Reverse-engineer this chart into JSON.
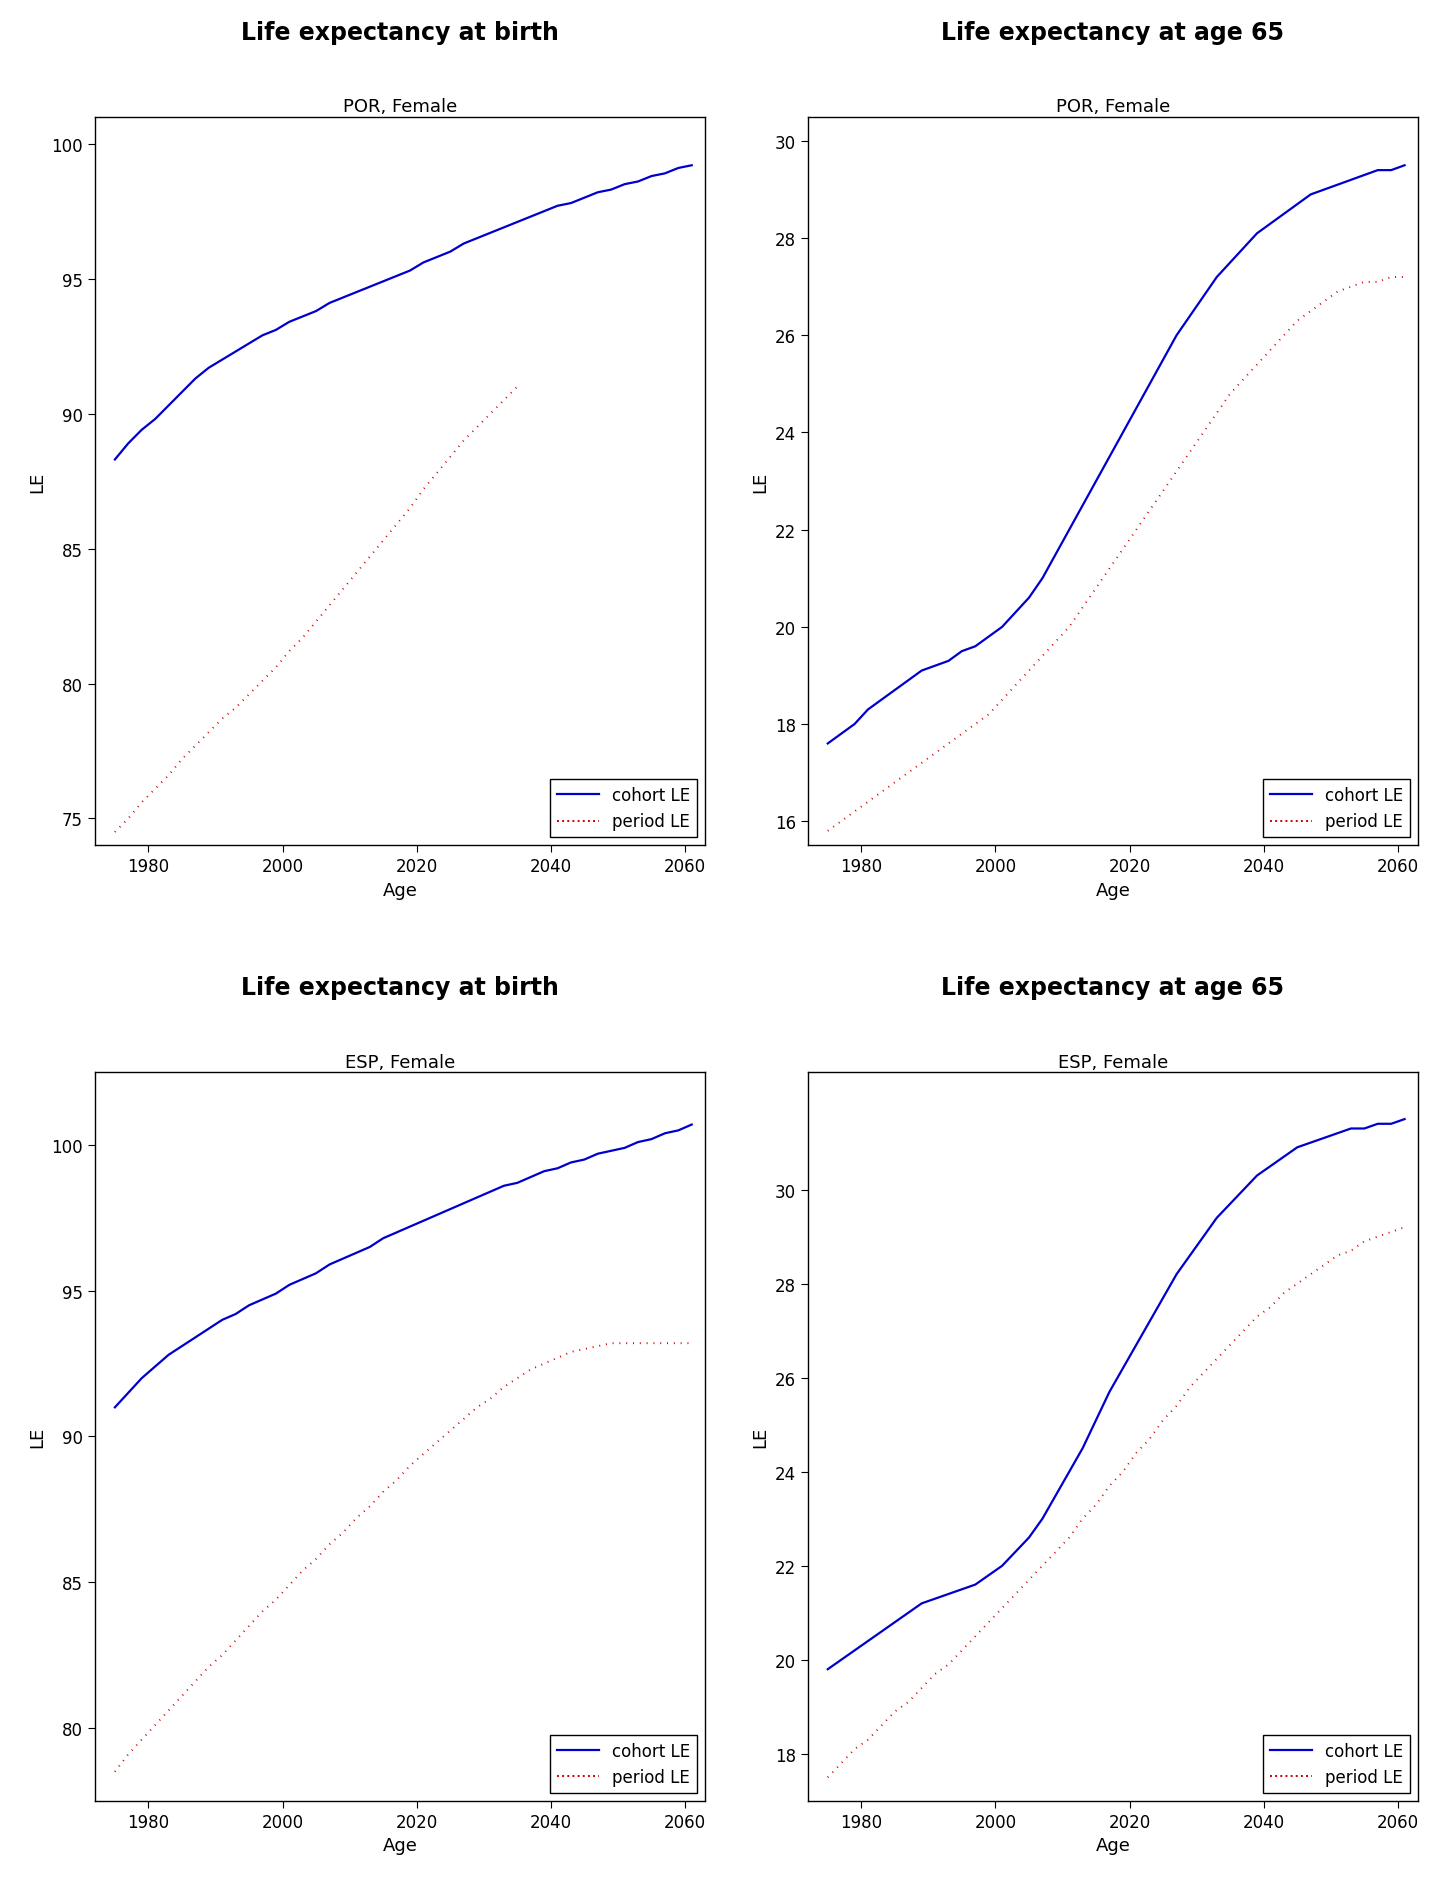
{
  "panels": [
    {
      "title": "Life expectancy at birth",
      "subtitle": "POR, Female",
      "ylabel": "LE",
      "xlabel": "Age",
      "xlim": [
        1972,
        2063
      ],
      "ylim": [
        74,
        101
      ],
      "yticks": [
        75,
        80,
        85,
        90,
        95,
        100
      ],
      "xticks": [
        1980,
        2000,
        2020,
        2040,
        2060
      ],
      "cohort_x": [
        1975,
        1977,
        1979,
        1981,
        1983,
        1985,
        1987,
        1989,
        1991,
        1993,
        1995,
        1997,
        1999,
        2001,
        2003,
        2005,
        2007,
        2009,
        2011,
        2013,
        2015,
        2017,
        2019,
        2021,
        2023,
        2025,
        2027,
        2029,
        2031,
        2033,
        2035,
        2037,
        2039,
        2041,
        2043,
        2045,
        2047,
        2049,
        2051,
        2053,
        2055,
        2057,
        2059,
        2061
      ],
      "cohort_y": [
        88.3,
        88.9,
        89.4,
        89.8,
        90.3,
        90.8,
        91.3,
        91.7,
        92.0,
        92.3,
        92.6,
        92.9,
        93.1,
        93.4,
        93.6,
        93.8,
        94.1,
        94.3,
        94.5,
        94.7,
        94.9,
        95.1,
        95.3,
        95.6,
        95.8,
        96.0,
        96.3,
        96.5,
        96.7,
        96.9,
        97.1,
        97.3,
        97.5,
        97.7,
        97.8,
        98.0,
        98.2,
        98.3,
        98.5,
        98.6,
        98.8,
        98.9,
        99.1,
        99.2
      ],
      "period_x": [
        1975,
        1977,
        1979,
        1981,
        1983,
        1985,
        1987,
        1989,
        1991,
        1993,
        1995,
        1997,
        1999,
        2001,
        2003,
        2005,
        2007,
        2009,
        2011,
        2013,
        2015,
        2017,
        2019,
        2021,
        2023,
        2025,
        2027,
        2029,
        2031,
        2033,
        2035
      ],
      "period_y": [
        74.5,
        75.0,
        75.6,
        76.1,
        76.6,
        77.2,
        77.7,
        78.2,
        78.7,
        79.1,
        79.6,
        80.1,
        80.6,
        81.2,
        81.7,
        82.3,
        82.9,
        83.5,
        84.1,
        84.7,
        85.3,
        85.9,
        86.5,
        87.2,
        87.8,
        88.4,
        89.0,
        89.5,
        90.0,
        90.5,
        91.0
      ],
      "legend_loc": "lower right"
    },
    {
      "title": "Life expectancy at age 65",
      "subtitle": "POR, Female",
      "ylabel": "LE",
      "xlabel": "Age",
      "xlim": [
        1972,
        2063
      ],
      "ylim": [
        15.5,
        30.5
      ],
      "yticks": [
        16,
        18,
        20,
        22,
        24,
        26,
        28,
        30
      ],
      "xticks": [
        1980,
        2000,
        2020,
        2040,
        2060
      ],
      "cohort_x": [
        1975,
        1977,
        1979,
        1981,
        1983,
        1985,
        1987,
        1989,
        1991,
        1993,
        1995,
        1997,
        1999,
        2001,
        2003,
        2005,
        2007,
        2009,
        2011,
        2013,
        2015,
        2017,
        2019,
        2021,
        2023,
        2025,
        2027,
        2029,
        2031,
        2033,
        2035,
        2037,
        2039,
        2041,
        2043,
        2045,
        2047,
        2049,
        2051,
        2053,
        2055,
        2057,
        2059,
        2061
      ],
      "cohort_y": [
        17.6,
        17.8,
        18.0,
        18.3,
        18.5,
        18.7,
        18.9,
        19.1,
        19.2,
        19.3,
        19.5,
        19.6,
        19.8,
        20.0,
        20.3,
        20.6,
        21.0,
        21.5,
        22.0,
        22.5,
        23.0,
        23.5,
        24.0,
        24.5,
        25.0,
        25.5,
        26.0,
        26.4,
        26.8,
        27.2,
        27.5,
        27.8,
        28.1,
        28.3,
        28.5,
        28.7,
        28.9,
        29.0,
        29.1,
        29.2,
        29.3,
        29.4,
        29.4,
        29.5
      ],
      "period_x": [
        1975,
        1977,
        1979,
        1981,
        1983,
        1985,
        1987,
        1989,
        1991,
        1993,
        1995,
        1997,
        1999,
        2001,
        2003,
        2005,
        2007,
        2009,
        2011,
        2013,
        2015,
        2017,
        2019,
        2021,
        2023,
        2025,
        2027,
        2029,
        2031,
        2033,
        2035,
        2037,
        2039,
        2041,
        2043,
        2045,
        2047,
        2049,
        2051,
        2053,
        2055,
        2057,
        2059,
        2061
      ],
      "period_y": [
        15.8,
        16.0,
        16.2,
        16.4,
        16.6,
        16.8,
        17.0,
        17.2,
        17.4,
        17.6,
        17.8,
        18.0,
        18.2,
        18.5,
        18.8,
        19.1,
        19.4,
        19.7,
        20.0,
        20.4,
        20.8,
        21.2,
        21.6,
        22.0,
        22.4,
        22.8,
        23.2,
        23.6,
        24.0,
        24.4,
        24.8,
        25.1,
        25.4,
        25.7,
        26.0,
        26.3,
        26.5,
        26.7,
        26.9,
        27.0,
        27.1,
        27.1,
        27.2,
        27.2
      ],
      "legend_loc": "lower right"
    },
    {
      "title": "Life expectancy at birth",
      "subtitle": "ESP, Female",
      "ylabel": "LE",
      "xlabel": "Age",
      "xlim": [
        1972,
        2063
      ],
      "ylim": [
        77.5,
        102.5
      ],
      "yticks": [
        80,
        85,
        90,
        95,
        100
      ],
      "xticks": [
        1980,
        2000,
        2020,
        2040,
        2060
      ],
      "cohort_x": [
        1975,
        1977,
        1979,
        1981,
        1983,
        1985,
        1987,
        1989,
        1991,
        1993,
        1995,
        1997,
        1999,
        2001,
        2003,
        2005,
        2007,
        2009,
        2011,
        2013,
        2015,
        2017,
        2019,
        2021,
        2023,
        2025,
        2027,
        2029,
        2031,
        2033,
        2035,
        2037,
        2039,
        2041,
        2043,
        2045,
        2047,
        2049,
        2051,
        2053,
        2055,
        2057,
        2059,
        2061
      ],
      "cohort_y": [
        91.0,
        91.5,
        92.0,
        92.4,
        92.8,
        93.1,
        93.4,
        93.7,
        94.0,
        94.2,
        94.5,
        94.7,
        94.9,
        95.2,
        95.4,
        95.6,
        95.9,
        96.1,
        96.3,
        96.5,
        96.8,
        97.0,
        97.2,
        97.4,
        97.6,
        97.8,
        98.0,
        98.2,
        98.4,
        98.6,
        98.7,
        98.9,
        99.1,
        99.2,
        99.4,
        99.5,
        99.7,
        99.8,
        99.9,
        100.1,
        100.2,
        100.4,
        100.5,
        100.7
      ],
      "period_x": [
        1975,
        1977,
        1979,
        1981,
        1983,
        1985,
        1987,
        1989,
        1991,
        1993,
        1995,
        1997,
        1999,
        2001,
        2003,
        2005,
        2007,
        2009,
        2011,
        2013,
        2015,
        2017,
        2019,
        2021,
        2023,
        2025,
        2027,
        2029,
        2031,
        2033,
        2035,
        2037,
        2039,
        2041,
        2043,
        2045,
        2047,
        2049,
        2051,
        2053,
        2055,
        2057,
        2059,
        2061
      ],
      "period_y": [
        78.5,
        79.1,
        79.6,
        80.1,
        80.6,
        81.1,
        81.6,
        82.1,
        82.5,
        83.0,
        83.5,
        84.0,
        84.4,
        84.9,
        85.4,
        85.8,
        86.3,
        86.7,
        87.2,
        87.6,
        88.1,
        88.5,
        89.0,
        89.4,
        89.8,
        90.2,
        90.6,
        91.0,
        91.3,
        91.7,
        92.0,
        92.3,
        92.5,
        92.7,
        92.9,
        93.0,
        93.1,
        93.2,
        93.2,
        93.2,
        93.2,
        93.2,
        93.2,
        93.2
      ],
      "legend_loc": "lower right"
    },
    {
      "title": "Life expectancy at age 65",
      "subtitle": "ESP, Female",
      "ylabel": "LE",
      "xlabel": "Age",
      "xlim": [
        1972,
        2063
      ],
      "ylim": [
        17.0,
        32.5
      ],
      "yticks": [
        18,
        20,
        22,
        24,
        26,
        28,
        30
      ],
      "xticks": [
        1980,
        2000,
        2020,
        2040,
        2060
      ],
      "cohort_x": [
        1975,
        1977,
        1979,
        1981,
        1983,
        1985,
        1987,
        1989,
        1991,
        1993,
        1995,
        1997,
        1999,
        2001,
        2003,
        2005,
        2007,
        2009,
        2011,
        2013,
        2015,
        2017,
        2019,
        2021,
        2023,
        2025,
        2027,
        2029,
        2031,
        2033,
        2035,
        2037,
        2039,
        2041,
        2043,
        2045,
        2047,
        2049,
        2051,
        2053,
        2055,
        2057,
        2059,
        2061
      ],
      "cohort_y": [
        19.8,
        20.0,
        20.2,
        20.4,
        20.6,
        20.8,
        21.0,
        21.2,
        21.3,
        21.4,
        21.5,
        21.6,
        21.8,
        22.0,
        22.3,
        22.6,
        23.0,
        23.5,
        24.0,
        24.5,
        25.1,
        25.7,
        26.2,
        26.7,
        27.2,
        27.7,
        28.2,
        28.6,
        29.0,
        29.4,
        29.7,
        30.0,
        30.3,
        30.5,
        30.7,
        30.9,
        31.0,
        31.1,
        31.2,
        31.3,
        31.3,
        31.4,
        31.4,
        31.5
      ],
      "period_x": [
        1975,
        1977,
        1979,
        1981,
        1983,
        1985,
        1987,
        1989,
        1991,
        1993,
        1995,
        1997,
        1999,
        2001,
        2003,
        2005,
        2007,
        2009,
        2011,
        2013,
        2015,
        2017,
        2019,
        2021,
        2023,
        2025,
        2027,
        2029,
        2031,
        2033,
        2035,
        2037,
        2039,
        2041,
        2043,
        2045,
        2047,
        2049,
        2051,
        2053,
        2055,
        2057,
        2059,
        2061
      ],
      "period_y": [
        17.5,
        17.8,
        18.1,
        18.3,
        18.6,
        18.9,
        19.1,
        19.4,
        19.7,
        19.9,
        20.2,
        20.5,
        20.8,
        21.1,
        21.4,
        21.7,
        22.0,
        22.3,
        22.6,
        23.0,
        23.3,
        23.7,
        24.0,
        24.4,
        24.7,
        25.1,
        25.4,
        25.8,
        26.1,
        26.4,
        26.7,
        27.0,
        27.3,
        27.5,
        27.8,
        28.0,
        28.2,
        28.4,
        28.6,
        28.7,
        28.9,
        29.0,
        29.1,
        29.2
      ],
      "legend_loc": "lower right"
    }
  ],
  "cohort_color": "#0000CC",
  "period_color": "#CC0000",
  "cohort_lw": 1.6,
  "period_lw": 1.4,
  "title_fontsize": 17,
  "subtitle_fontsize": 13,
  "label_fontsize": 13,
  "tick_fontsize": 12,
  "legend_fontsize": 12,
  "bg_color": "#FFFFFF"
}
